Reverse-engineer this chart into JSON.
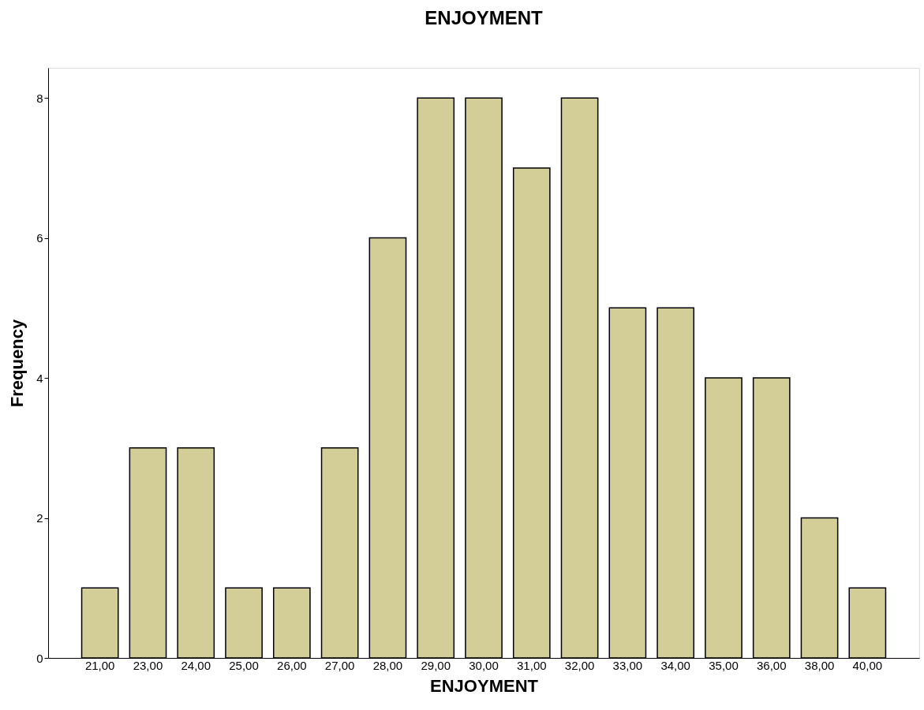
{
  "chart_data": {
    "type": "bar",
    "title": "ENJOYMENT",
    "xlabel": "ENJOYMENT",
    "ylabel": "Frequency",
    "categories": [
      "21,00",
      "23,00",
      "24,00",
      "25,00",
      "26,00",
      "27,00",
      "28,00",
      "29,00",
      "30,00",
      "31,00",
      "32,00",
      "33,00",
      "34,00",
      "35,00",
      "36,00",
      "38,00",
      "40,00"
    ],
    "values": [
      1,
      3,
      3,
      1,
      1,
      3,
      6,
      8,
      8,
      7,
      8,
      5,
      5,
      4,
      4,
      2,
      1
    ],
    "color": "#d3ce97",
    "ylim": [
      0,
      8.43
    ],
    "yticks": [
      0,
      2,
      4,
      6,
      8
    ],
    "grid": false
  }
}
